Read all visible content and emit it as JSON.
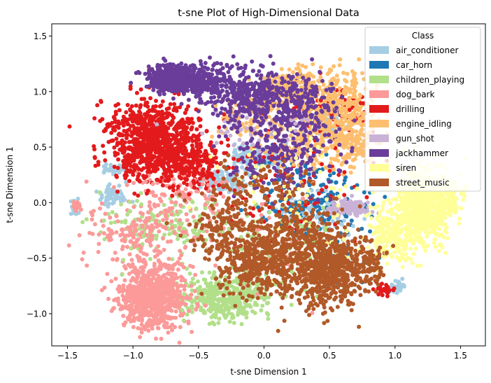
{
  "chart_data": {
    "type": "scatter",
    "title": "t-sne Plot of High-Dimensional Data",
    "xlabel": "t-sne Dimension 1",
    "ylabel": "t-sne Dimension 1",
    "xlim": [
      -1.62,
      1.69
    ],
    "ylim": [
      -1.29,
      1.61
    ],
    "xticks": [
      -1.5,
      -1.0,
      -0.5,
      0.0,
      0.5,
      1.0,
      1.5
    ],
    "yticks": [
      -1.0,
      -0.5,
      0.0,
      0.5,
      1.0,
      1.5
    ],
    "xtick_labels": [
      "−1.5",
      "−1.0",
      "−0.5",
      "0.0",
      "0.5",
      "1.0",
      "1.5"
    ],
    "ytick_labels": [
      "−1.0",
      "−0.5",
      "0.0",
      "0.5",
      "1.0",
      "1.5"
    ],
    "grid": false,
    "legend": {
      "title": "Class",
      "placement": "upper-right"
    },
    "series": [
      {
        "name": "air_conditioner",
        "color": "#a6cee3",
        "clusters": [
          {
            "cx": -1.44,
            "cy": -0.05,
            "sx": 0.02,
            "sy": 0.03,
            "n": 30
          },
          {
            "cx": -1.13,
            "cy": 0.29,
            "sx": 0.05,
            "sy": 0.02,
            "n": 45
          },
          {
            "cx": -1.15,
            "cy": 0.07,
            "sx": 0.06,
            "sy": 0.04,
            "n": 60
          },
          {
            "cx": -0.05,
            "cy": 0.42,
            "sx": 0.1,
            "sy": 0.05,
            "n": 140
          },
          {
            "cx": -0.3,
            "cy": 0.2,
            "sx": 0.1,
            "sy": 0.06,
            "n": 120
          },
          {
            "cx": 0.45,
            "cy": 0.72,
            "sx": 0.08,
            "sy": 0.06,
            "n": 60
          },
          {
            "cx": 1.02,
            "cy": -0.75,
            "sx": 0.03,
            "sy": 0.03,
            "n": 30
          },
          {
            "cx": 0.4,
            "cy": -0.1,
            "sx": 0.15,
            "sy": 0.1,
            "n": 100
          }
        ]
      },
      {
        "name": "car_horn",
        "color": "#1f78b4",
        "clusters": [
          {
            "cx": 0.4,
            "cy": -0.05,
            "sx": 0.2,
            "sy": 0.15,
            "n": 130
          },
          {
            "cx": 0.2,
            "cy": 0.2,
            "sx": 0.18,
            "sy": 0.15,
            "n": 60
          },
          {
            "cx": 0.55,
            "cy": -0.45,
            "sx": 0.12,
            "sy": 0.15,
            "n": 40
          }
        ]
      },
      {
        "name": "children_playing",
        "color": "#b2df8a",
        "clusters": [
          {
            "cx": -0.3,
            "cy": -0.85,
            "sx": 0.17,
            "sy": 0.1,
            "n": 430
          },
          {
            "cx": -0.75,
            "cy": -0.2,
            "sx": 0.25,
            "sy": 0.12,
            "n": 160
          },
          {
            "cx": 0.1,
            "cy": -0.4,
            "sx": 0.25,
            "sy": 0.2,
            "n": 100
          }
        ]
      },
      {
        "name": "dog_bark",
        "color": "#fb9a99",
        "clusters": [
          {
            "cx": -1.43,
            "cy": -0.03,
            "sx": 0.015,
            "sy": 0.02,
            "n": 25
          },
          {
            "cx": -0.85,
            "cy": -0.85,
            "sx": 0.12,
            "sy": 0.14,
            "n": 850
          },
          {
            "cx": -0.9,
            "cy": -0.25,
            "sx": 0.2,
            "sy": 0.15,
            "n": 220
          },
          {
            "cx": -0.6,
            "cy": 0.1,
            "sx": 0.2,
            "sy": 0.1,
            "n": 80
          },
          {
            "cx": 0.0,
            "cy": -0.4,
            "sx": 0.3,
            "sy": 0.2,
            "n": 60
          }
        ]
      },
      {
        "name": "drilling",
        "color": "#e31a1c",
        "clusters": [
          {
            "cx": -0.85,
            "cy": 0.55,
            "sx": 0.17,
            "sy": 0.18,
            "n": 900
          },
          {
            "cx": -0.55,
            "cy": 0.35,
            "sx": 0.12,
            "sy": 0.1,
            "n": 200
          },
          {
            "cx": 0.55,
            "cy": 0.85,
            "sx": 0.15,
            "sy": 0.1,
            "n": 80
          },
          {
            "cx": 0.2,
            "cy": 0.2,
            "sx": 0.3,
            "sy": 0.3,
            "n": 100
          },
          {
            "cx": 0.9,
            "cy": -0.78,
            "sx": 0.05,
            "sy": 0.03,
            "n": 25
          }
        ]
      },
      {
        "name": "engine_idling",
        "color": "#fdbf6f",
        "clusters": [
          {
            "cx": 0.55,
            "cy": 0.85,
            "sx": 0.15,
            "sy": 0.15,
            "n": 400
          },
          {
            "cx": 0.2,
            "cy": 1.05,
            "sx": 0.12,
            "sy": 0.08,
            "n": 200
          },
          {
            "cx": 0.7,
            "cy": 0.5,
            "sx": 0.1,
            "sy": 0.1,
            "n": 120
          },
          {
            "cx": 0.3,
            "cy": 0.55,
            "sx": 0.15,
            "sy": 0.15,
            "n": 150
          },
          {
            "cx": -0.1,
            "cy": 0.75,
            "sx": 0.15,
            "sy": 0.1,
            "n": 80
          }
        ]
      },
      {
        "name": "gun_shot",
        "color": "#cab2d6",
        "clusters": [
          {
            "cx": 0.65,
            "cy": -0.05,
            "sx": 0.07,
            "sy": 0.04,
            "n": 120
          },
          {
            "cx": 0.0,
            "cy": 0.65,
            "sx": 0.2,
            "sy": 0.1,
            "n": 50
          }
        ]
      },
      {
        "name": "jackhammer",
        "color": "#6a3d9a",
        "clusters": [
          {
            "cx": -0.7,
            "cy": 1.12,
            "sx": 0.1,
            "sy": 0.06,
            "n": 450
          },
          {
            "cx": -0.45,
            "cy": 1.08,
            "sx": 0.09,
            "sy": 0.08,
            "n": 200
          },
          {
            "cx": -0.1,
            "cy": 0.95,
            "sx": 0.15,
            "sy": 0.12,
            "n": 350
          },
          {
            "cx": 0.25,
            "cy": 0.85,
            "sx": 0.15,
            "sy": 0.15,
            "n": 250
          },
          {
            "cx": 0.15,
            "cy": 0.4,
            "sx": 0.2,
            "sy": 0.15,
            "n": 200
          }
        ]
      },
      {
        "name": "siren",
        "color": "#ffff99",
        "clusters": [
          {
            "cx": 1.2,
            "cy": -0.05,
            "sx": 0.12,
            "sy": 0.17,
            "n": 700
          },
          {
            "cx": 0.95,
            "cy": -0.3,
            "sx": 0.1,
            "sy": 0.12,
            "n": 200
          },
          {
            "cx": 1.4,
            "cy": 0.05,
            "sx": 0.06,
            "sy": 0.08,
            "n": 100
          },
          {
            "cx": 0.3,
            "cy": 0.0,
            "sx": 0.3,
            "sy": 0.3,
            "n": 60
          }
        ]
      },
      {
        "name": "street_music",
        "color": "#b15928",
        "clusters": [
          {
            "cx": 0.5,
            "cy": -0.6,
            "sx": 0.15,
            "sy": 0.17,
            "n": 650
          },
          {
            "cx": -0.05,
            "cy": -0.55,
            "sx": 0.17,
            "sy": 0.15,
            "n": 450
          },
          {
            "cx": 0.25,
            "cy": -0.3,
            "sx": 0.15,
            "sy": 0.12,
            "n": 200
          },
          {
            "cx": -0.3,
            "cy": -0.2,
            "sx": 0.15,
            "sy": 0.15,
            "n": 150
          },
          {
            "cx": 0.0,
            "cy": 0.15,
            "sx": 0.2,
            "sy": 0.12,
            "n": 100
          },
          {
            "cx": 0.8,
            "cy": -0.55,
            "sx": 0.08,
            "sy": 0.12,
            "n": 80
          }
        ]
      }
    ]
  }
}
